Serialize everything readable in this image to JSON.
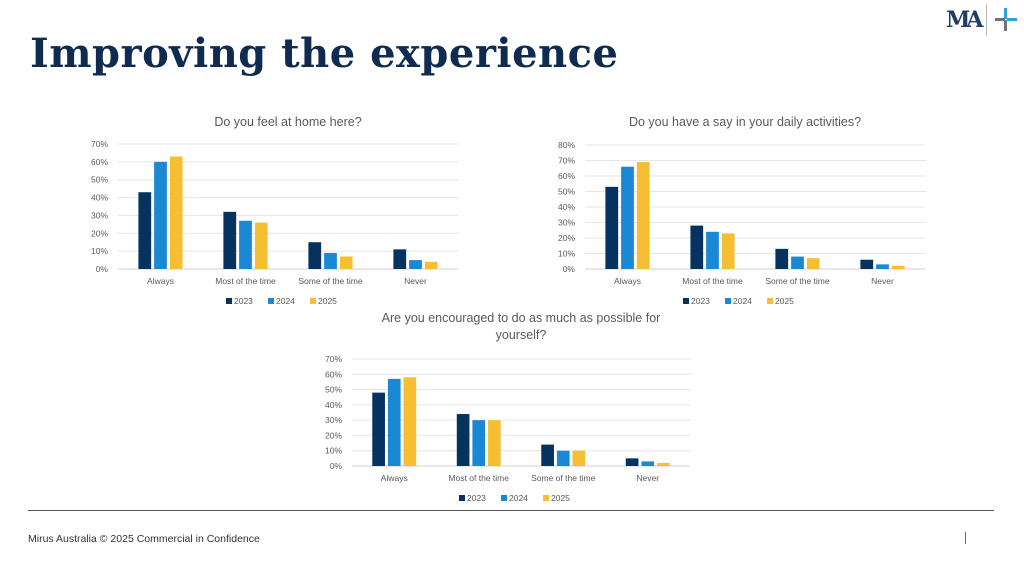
{
  "slide": {
    "title": "Improving the experience",
    "logo_text": "MA",
    "footer": "Mirus Australia © 2025  Commercial in Confidence"
  },
  "colors": {
    "2023": "#06325f",
    "2024": "#1b88d4",
    "2025": "#f6bf33",
    "title": "#0f2b4f"
  },
  "chart_data": [
    {
      "type": "bar",
      "title": [
        "Do you feel at home here?"
      ],
      "categories": [
        "Always",
        "Most of the time",
        "Some of the time",
        "Never"
      ],
      "series": [
        {
          "name": "2023",
          "values": [
            43,
            32,
            15,
            11
          ]
        },
        {
          "name": "2024",
          "values": [
            60,
            27,
            9,
            5
          ]
        },
        {
          "name": "2025",
          "values": [
            63,
            26,
            7,
            4
          ]
        }
      ],
      "ylim": [
        0,
        70
      ],
      "ytick_step": 10,
      "yunit": "%",
      "grid": true,
      "legend": "bottom"
    },
    {
      "type": "bar",
      "title": [
        "Do you have a say in your daily activities?"
      ],
      "categories": [
        "Always",
        "Most of the time",
        "Some of the time",
        "Never"
      ],
      "series": [
        {
          "name": "2023",
          "values": [
            53,
            28,
            13,
            6
          ]
        },
        {
          "name": "2024",
          "values": [
            66,
            24,
            8,
            3
          ]
        },
        {
          "name": "2025",
          "values": [
            69,
            23,
            7,
            2
          ]
        }
      ],
      "ylim": [
        0,
        80
      ],
      "ytick_step": 10,
      "yunit": "%",
      "grid": true,
      "legend": "bottom"
    },
    {
      "type": "bar",
      "title": [
        "Are you encouraged to do as much as possible for",
        "yourself?"
      ],
      "categories": [
        "Always",
        "Most of the time",
        "Some of the time",
        "Never"
      ],
      "series": [
        {
          "name": "2023",
          "values": [
            48,
            34,
            14,
            5
          ]
        },
        {
          "name": "2024",
          "values": [
            57,
            30,
            10,
            3
          ]
        },
        {
          "name": "2025",
          "values": [
            58,
            30,
            10,
            2
          ]
        }
      ],
      "ylim": [
        0,
        70
      ],
      "ytick_step": 10,
      "yunit": "%",
      "grid": true,
      "legend": "bottom"
    }
  ]
}
